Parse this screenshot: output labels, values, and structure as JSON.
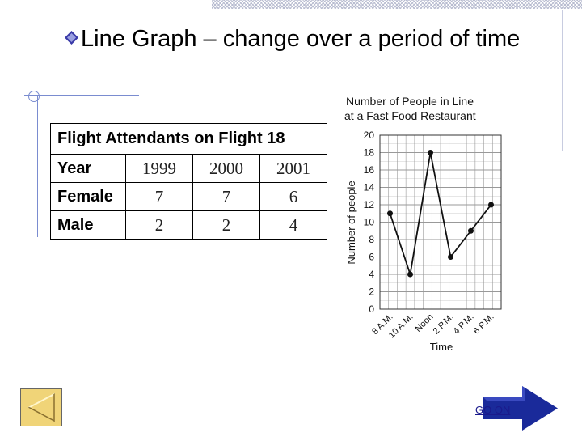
{
  "slide": {
    "title": "Line Graph – change over a period of time"
  },
  "table": {
    "caption": "Flight Attendants on Flight 18",
    "header": [
      "Year",
      "1999",
      "2000",
      "2001"
    ],
    "rows": [
      {
        "label": "Female",
        "values": [
          "7",
          "7",
          "6"
        ]
      },
      {
        "label": "Male",
        "values": [
          "2",
          "2",
          "4"
        ]
      }
    ]
  },
  "nav": {
    "go_on_label": "GO ON",
    "back_icon": "triangle-left-icon",
    "forward_icon": "arrow-right-icon"
  },
  "colors": {
    "accent": "#1a1a8c",
    "back_button": "#f0d478"
  },
  "chart_data": {
    "type": "line",
    "title": "Number of People in Line at a Fast Food Restaurant",
    "title_lines": [
      "Number of People in Line",
      "at a Fast Food Restaurant"
    ],
    "xlabel": "Time",
    "ylabel": "Number of people",
    "categories": [
      "8 A.M.",
      "10 A.M.",
      "Noon",
      "2 P.M.",
      "4 P.M.",
      "6 P.M."
    ],
    "series": [
      {
        "values": [
          11,
          4,
          18,
          6,
          9,
          12
        ]
      }
    ],
    "ylim": [
      0,
      20
    ],
    "yticks": [
      0,
      2,
      4,
      6,
      8,
      10,
      12,
      14,
      16,
      18,
      20
    ],
    "grid": true
  }
}
